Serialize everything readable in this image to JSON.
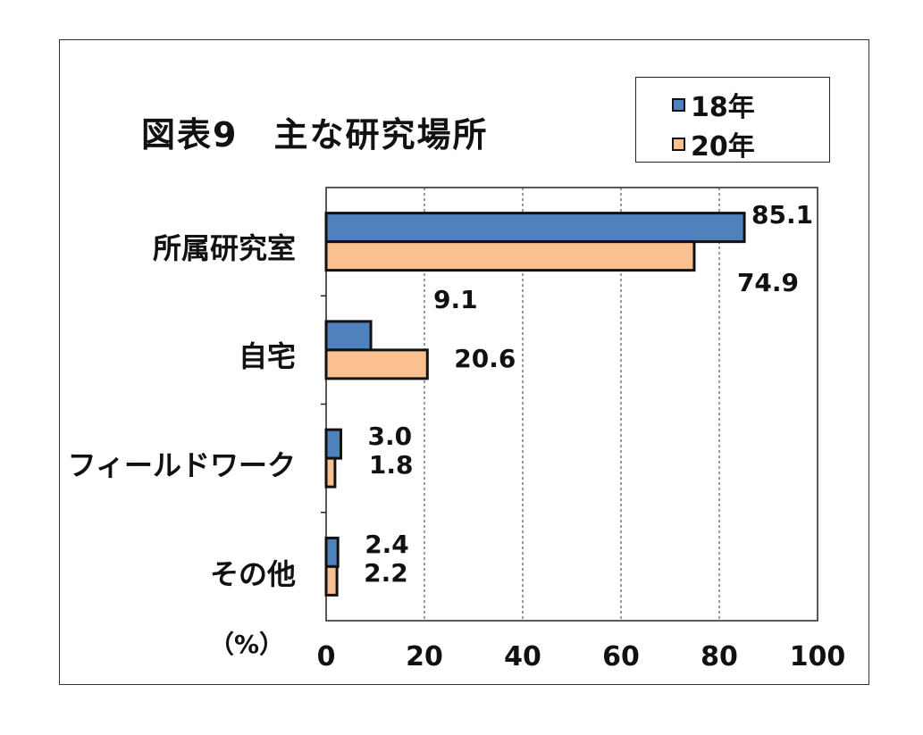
{
  "chart_data": {
    "type": "bar",
    "orientation": "horizontal",
    "title": "図表9　主な研究場所",
    "unit_label": "（%）",
    "categories": [
      "所属研究室",
      "自宅",
      "フィールドワーク",
      "その他"
    ],
    "series": [
      {
        "name": "18年",
        "color": "#4f81bd",
        "values": [
          85.1,
          9.1,
          3.0,
          2.4
        ],
        "labels": [
          "85.1",
          "9.1",
          "3.0",
          "2.4"
        ]
      },
      {
        "name": "20年",
        "color": "#fac090",
        "values": [
          74.9,
          20.6,
          1.8,
          2.2
        ],
        "labels": [
          "74.9",
          "20.6",
          "1.8",
          "2.2"
        ]
      }
    ],
    "xlim": [
      0,
      100
    ],
    "xticks": [
      "0",
      "20",
      "40",
      "60",
      "80",
      "100"
    ],
    "grid": "vertical dashed",
    "legend_position": "top-right"
  }
}
